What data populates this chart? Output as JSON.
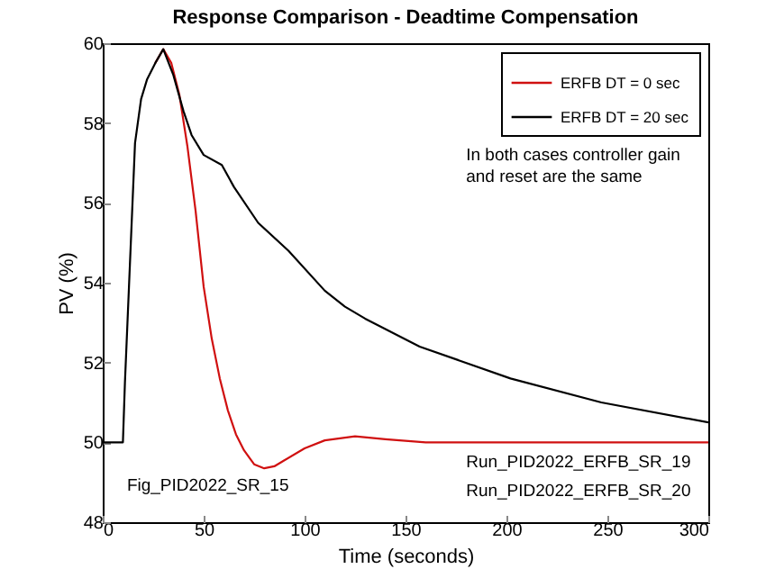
{
  "chart_data": {
    "type": "line",
    "title": "Response Comparison - Deadtime Compensation",
    "xlabel": "Time (seconds)",
    "ylabel": "PV (%)",
    "xlim": [
      0,
      300
    ],
    "xticks": [
      0,
      50,
      100,
      150,
      200,
      250,
      300
    ],
    "ylim": [
      48,
      60
    ],
    "yticks": [
      48,
      50,
      52,
      54,
      56,
      58,
      60
    ],
    "grid": false,
    "legend": "top right",
    "line_style": "solid",
    "marker": "none",
    "annotations": [
      "In both cases controller gain and reset are the same",
      "Fig_PID2022_SR_15",
      "Run_PID2022_ERFB_SR_19",
      "Run_PID2022_ERFB_SR_20"
    ],
    "series": [
      {
        "name": "ERFB DT = 0 sec",
        "color": "#d01010",
        "x": [
          26,
          30,
          34,
          38,
          42,
          46,
          50,
          54,
          58,
          62,
          66,
          70,
          75,
          80,
          85,
          90,
          100,
          110,
          125,
          140,
          160,
          200,
          250,
          300
        ],
        "values": [
          59.5,
          59.85,
          59.5,
          58.7,
          57.4,
          55.8,
          53.9,
          52.6,
          51.6,
          50.8,
          50.2,
          49.8,
          49.45,
          49.35,
          49.4,
          49.55,
          49.85,
          50.05,
          50.15,
          50.08,
          50,
          50,
          50,
          50
        ]
      },
      {
        "name": "ERFB DT = 20 sec",
        "color": "#000000",
        "x": [
          0,
          10,
          11,
          13,
          16,
          19,
          22,
          26,
          30,
          35,
          40,
          44,
          50,
          59,
          65,
          77,
          92,
          110,
          120,
          130,
          157,
          202,
          247,
          300
        ],
        "values": [
          50,
          50,
          51.5,
          53.9,
          57.5,
          58.6,
          59.1,
          59.5,
          59.85,
          59.2,
          58.3,
          57.7,
          57.2,
          56.95,
          56.4,
          55.5,
          54.8,
          53.8,
          53.4,
          53.1,
          52.4,
          51.6,
          51.0,
          50.5
        ]
      }
    ]
  }
}
